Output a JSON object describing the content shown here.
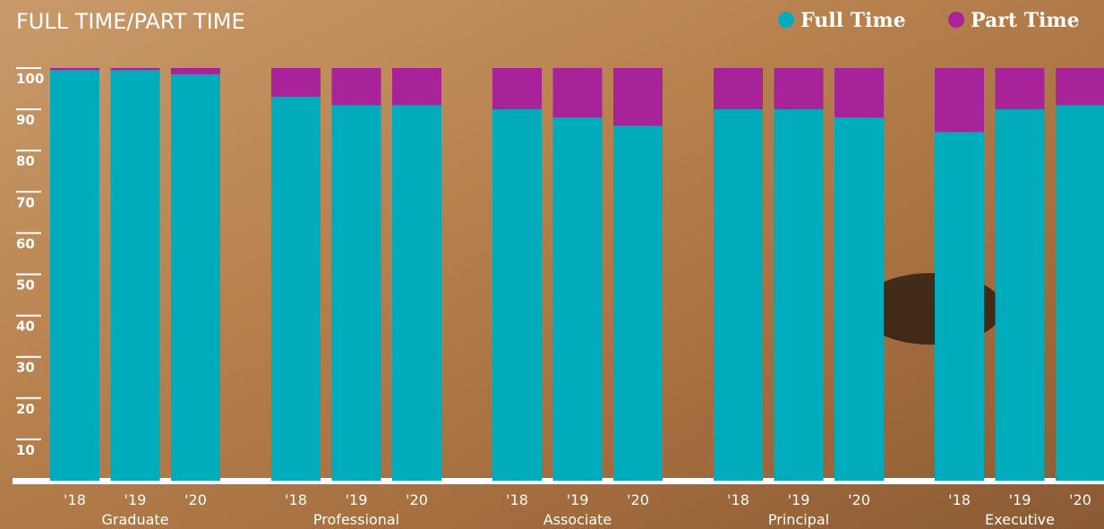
{
  "chart_data": {
    "type": "stacked-bar",
    "title": "FULL TIME/PART TIME",
    "categories": [
      "'18",
      "'19",
      "'20",
      "'18",
      "'19",
      "'20",
      "'18",
      "'19",
      "'20",
      "'18",
      "'19",
      "'20",
      "'18",
      "'19",
      "'20"
    ],
    "groups": [
      "Graduate",
      "Professional",
      "Associate",
      "Principal",
      "Executive"
    ],
    "series": [
      {
        "name": "Full Time",
        "color": "#00acbb",
        "values": [
          99.5,
          99.5,
          98.5,
          93,
          91,
          91,
          90,
          88,
          86,
          90,
          90,
          88,
          84.5,
          90,
          91
        ]
      },
      {
        "name": "Part Time",
        "color": "#a8229a",
        "values": [
          0.5,
          0.5,
          1.5,
          7,
          9,
          9,
          10,
          12,
          14,
          10,
          10,
          12,
          15.5,
          10,
          9
        ]
      }
    ],
    "ylim": [
      0,
      100
    ],
    "yticks": [
      10,
      20,
      30,
      40,
      50,
      60,
      70,
      80,
      90,
      100
    ],
    "legend": "top-right"
  }
}
